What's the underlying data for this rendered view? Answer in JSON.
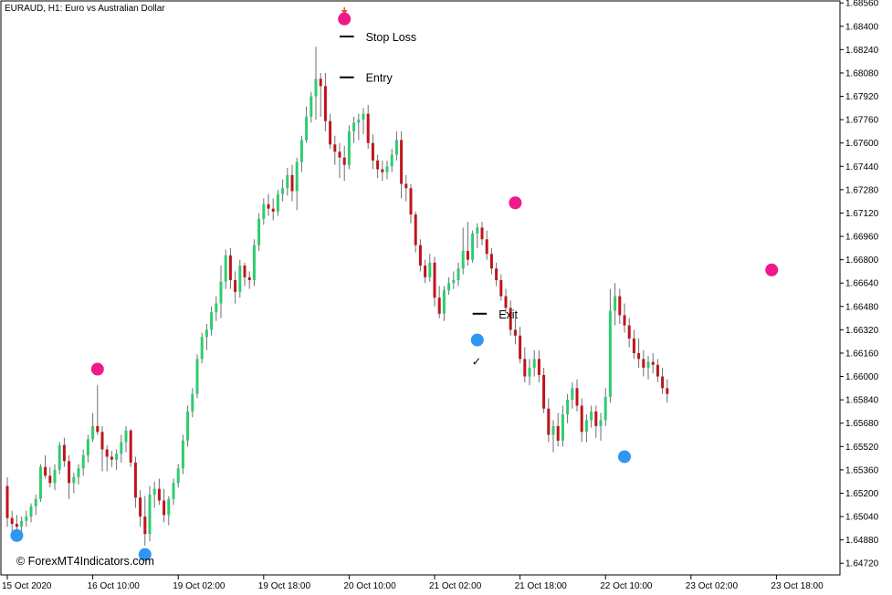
{
  "chart_data": {
    "type": "candlestick",
    "title": "EURAUD, H1:  Euro vs Australian Dollar",
    "watermark": "© ForexMT4Indicators.com",
    "ylim": [
      1.6464,
      1.6858
    ],
    "y_ticks": [
      "1.68560",
      "1.68400",
      "1.68240",
      "1.68080",
      "1.67920",
      "1.67760",
      "1.67600",
      "1.67440",
      "1.67280",
      "1.67120",
      "1.66960",
      "1.66800",
      "1.66640",
      "1.66480",
      "1.66320",
      "1.66160",
      "1.66000",
      "1.65840",
      "1.65680",
      "1.65520",
      "1.65360",
      "1.65200",
      "1.65040",
      "1.64880",
      "1.64720"
    ],
    "x_ticks": [
      {
        "label": "15 Oct 2020",
        "index": 0
      },
      {
        "label": "16 Oct 10:00",
        "index": 18
      },
      {
        "label": "19 Oct 02:00",
        "index": 36
      },
      {
        "label": "19 Oct 18:00",
        "index": 54
      },
      {
        "label": "20 Oct 10:00",
        "index": 72
      },
      {
        "label": "21 Oct 02:00",
        "index": 90
      },
      {
        "label": "21 Oct 18:00",
        "index": 108
      },
      {
        "label": "22 Oct 10:00",
        "index": 126
      },
      {
        "label": "23 Oct 02:00",
        "index": 144
      },
      {
        "label": "23 Oct 18:00",
        "index": 162
      }
    ],
    "colors": {
      "bull": "#2ecc71",
      "bear": "#c0141c",
      "wick": "#6e6e6e",
      "sell_dot": "#f0198c",
      "buy_dot": "#2f96f3",
      "arrow": "#e8542d",
      "line": "#000000"
    },
    "candles": [
      [
        1.6525,
        1.6531,
        1.6497,
        1.6503
      ],
      [
        1.6503,
        1.6508,
        1.6494,
        1.6499
      ],
      [
        1.6499,
        1.6505,
        1.6492,
        1.6497
      ],
      [
        1.6497,
        1.6504,
        1.6491,
        1.6501
      ],
      [
        1.6501,
        1.6508,
        1.6497,
        1.6504
      ],
      [
        1.6504,
        1.6513,
        1.65,
        1.6511
      ],
      [
        1.6511,
        1.6519,
        1.6505,
        1.6516
      ],
      [
        1.6516,
        1.654,
        1.6514,
        1.6538
      ],
      [
        1.6538,
        1.6546,
        1.653,
        1.6532
      ],
      [
        1.6532,
        1.6538,
        1.6524,
        1.6527
      ],
      [
        1.6527,
        1.654,
        1.6522,
        1.6536
      ],
      [
        1.6536,
        1.6555,
        1.6533,
        1.6553
      ],
      [
        1.6553,
        1.6558,
        1.6538,
        1.6542
      ],
      [
        1.6542,
        1.6546,
        1.6516,
        1.6527
      ],
      [
        1.6527,
        1.6534,
        1.652,
        1.6531
      ],
      [
        1.6531,
        1.654,
        1.6526,
        1.6537
      ],
      [
        1.6537,
        1.655,
        1.6532,
        1.6546
      ],
      [
        1.6546,
        1.656,
        1.6541,
        1.6557
      ],
      [
        1.6557,
        1.6575,
        1.6555,
        1.6566
      ],
      [
        1.6566,
        1.6594,
        1.656,
        1.6562
      ],
      [
        1.6562,
        1.6566,
        1.6535,
        1.655
      ],
      [
        1.655,
        1.6553,
        1.6535,
        1.6545
      ],
      [
        1.6545,
        1.6549,
        1.6538,
        1.6543
      ],
      [
        1.6543,
        1.655,
        1.6536,
        1.6547
      ],
      [
        1.6547,
        1.656,
        1.6541,
        1.6555
      ],
      [
        1.6555,
        1.6566,
        1.6548,
        1.6563
      ],
      [
        1.6563,
        1.6564,
        1.6538,
        1.6541
      ],
      [
        1.6541,
        1.6545,
        1.651,
        1.6517
      ],
      [
        1.6517,
        1.6522,
        1.6497,
        1.6504
      ],
      [
        1.6504,
        1.6518,
        1.6484,
        1.6492
      ],
      [
        1.6492,
        1.6525,
        1.6487,
        1.6519
      ],
      [
        1.6519,
        1.6528,
        1.651,
        1.6523
      ],
      [
        1.6523,
        1.653,
        1.6512,
        1.6515
      ],
      [
        1.6515,
        1.6523,
        1.65,
        1.6505
      ],
      [
        1.6505,
        1.6518,
        1.6498,
        1.6516
      ],
      [
        1.6516,
        1.653,
        1.6512,
        1.6527
      ],
      [
        1.6527,
        1.654,
        1.6524,
        1.6537
      ],
      [
        1.6537,
        1.656,
        1.6533,
        1.6556
      ],
      [
        1.6556,
        1.658,
        1.6552,
        1.6576
      ],
      [
        1.6576,
        1.6592,
        1.6572,
        1.6588
      ],
      [
        1.6588,
        1.6615,
        1.6585,
        1.6612
      ],
      [
        1.6612,
        1.663,
        1.6609,
        1.6627
      ],
      [
        1.6627,
        1.6636,
        1.6618,
        1.6632
      ],
      [
        1.6632,
        1.6648,
        1.6628,
        1.6644
      ],
      [
        1.6644,
        1.6655,
        1.6638,
        1.665
      ],
      [
        1.665,
        1.6676,
        1.664,
        1.6665
      ],
      [
        1.6665,
        1.6687,
        1.666,
        1.6683
      ],
      [
        1.6683,
        1.6688,
        1.666,
        1.6666
      ],
      [
        1.6666,
        1.6672,
        1.665,
        1.6658
      ],
      [
        1.6658,
        1.668,
        1.6654,
        1.6676
      ],
      [
        1.6676,
        1.6678,
        1.6662,
        1.6668
      ],
      [
        1.6668,
        1.6672,
        1.666,
        1.6666
      ],
      [
        1.6666,
        1.6694,
        1.6662,
        1.669
      ],
      [
        1.669,
        1.6712,
        1.6686,
        1.6708
      ],
      [
        1.6708,
        1.6722,
        1.6704,
        1.6718
      ],
      [
        1.6718,
        1.6725,
        1.671,
        1.6715
      ],
      [
        1.6715,
        1.6722,
        1.6707,
        1.6713
      ],
      [
        1.6713,
        1.6728,
        1.671,
        1.6725
      ],
      [
        1.6725,
        1.6735,
        1.672,
        1.6729
      ],
      [
        1.6729,
        1.6743,
        1.6724,
        1.6738
      ],
      [
        1.6738,
        1.6745,
        1.672,
        1.6727
      ],
      [
        1.6727,
        1.675,
        1.6714,
        1.6747
      ],
      [
        1.6747,
        1.6765,
        1.674,
        1.6762
      ],
      [
        1.6762,
        1.6785,
        1.676,
        1.6778
      ],
      [
        1.6778,
        1.6795,
        1.6774,
        1.6792
      ],
      [
        1.6792,
        1.6826,
        1.6776,
        1.6804
      ],
      [
        1.6804,
        1.6808,
        1.6778,
        1.6799
      ],
      [
        1.6799,
        1.6808,
        1.6768,
        1.6775
      ],
      [
        1.6775,
        1.678,
        1.6756,
        1.6759
      ],
      [
        1.6759,
        1.6765,
        1.6745,
        1.6754
      ],
      [
        1.6754,
        1.676,
        1.6736,
        1.675
      ],
      [
        1.675,
        1.6758,
        1.6734,
        1.6745
      ],
      [
        1.6745,
        1.6772,
        1.6742,
        1.6768
      ],
      [
        1.6768,
        1.6778,
        1.676,
        1.6774
      ],
      [
        1.6774,
        1.678,
        1.6762,
        1.6776
      ],
      [
        1.6776,
        1.6784,
        1.6766,
        1.678
      ],
      [
        1.678,
        1.6786,
        1.6756,
        1.676
      ],
      [
        1.676,
        1.6766,
        1.6742,
        1.6748
      ],
      [
        1.6748,
        1.6752,
        1.6736,
        1.6742
      ],
      [
        1.6742,
        1.6748,
        1.6734,
        1.674
      ],
      [
        1.674,
        1.6748,
        1.6735,
        1.6744
      ],
      [
        1.6744,
        1.6756,
        1.674,
        1.6752
      ],
      [
        1.6752,
        1.6768,
        1.6748,
        1.6762
      ],
      [
        1.6762,
        1.6768,
        1.6722,
        1.6732
      ],
      [
        1.6732,
        1.6738,
        1.672,
        1.6729
      ],
      [
        1.6729,
        1.6732,
        1.6705,
        1.6711
      ],
      [
        1.6711,
        1.6713,
        1.6685,
        1.669
      ],
      [
        1.669,
        1.6694,
        1.6672,
        1.6676
      ],
      [
        1.6676,
        1.668,
        1.6664,
        1.6668
      ],
      [
        1.6668,
        1.6684,
        1.6665,
        1.6678
      ],
      [
        1.6678,
        1.6682,
        1.6648,
        1.6654
      ],
      [
        1.6654,
        1.6662,
        1.664,
        1.6643
      ],
      [
        1.6643,
        1.6662,
        1.6638,
        1.6659
      ],
      [
        1.6659,
        1.6668,
        1.6656,
        1.6664
      ],
      [
        1.6664,
        1.6672,
        1.666,
        1.6666
      ],
      [
        1.6666,
        1.6678,
        1.6662,
        1.6674
      ],
      [
        1.6674,
        1.6702,
        1.667,
        1.6686
      ],
      [
        1.6686,
        1.6706,
        1.6676,
        1.668
      ],
      [
        1.668,
        1.67,
        1.6678,
        1.6698
      ],
      [
        1.6698,
        1.6705,
        1.6688,
        1.6702
      ],
      [
        1.6702,
        1.6706,
        1.669,
        1.6694
      ],
      [
        1.6694,
        1.67,
        1.668,
        1.6684
      ],
      [
        1.6684,
        1.6688,
        1.667,
        1.6674
      ],
      [
        1.6674,
        1.6678,
        1.6662,
        1.6666
      ],
      [
        1.6666,
        1.667,
        1.6652,
        1.6655
      ],
      [
        1.6655,
        1.666,
        1.6643,
        1.6647
      ],
      [
        1.6647,
        1.6652,
        1.6628,
        1.6632
      ],
      [
        1.6632,
        1.664,
        1.6622,
        1.6628
      ],
      [
        1.6628,
        1.6634,
        1.6609,
        1.6612
      ],
      [
        1.6612,
        1.662,
        1.6596,
        1.66
      ],
      [
        1.66,
        1.6612,
        1.6594,
        1.6606
      ],
      [
        1.6606,
        1.6618,
        1.66,
        1.6612
      ],
      [
        1.6612,
        1.6618,
        1.6596,
        1.6601
      ],
      [
        1.6601,
        1.6606,
        1.6575,
        1.6578
      ],
      [
        1.6578,
        1.6585,
        1.6555,
        1.656
      ],
      [
        1.656,
        1.657,
        1.6548,
        1.6566
      ],
      [
        1.6566,
        1.6575,
        1.6552,
        1.6556
      ],
      [
        1.6556,
        1.658,
        1.6552,
        1.6574
      ],
      [
        1.6574,
        1.6588,
        1.6568,
        1.6584
      ],
      [
        1.6584,
        1.6596,
        1.6578,
        1.6592
      ],
      [
        1.6592,
        1.6598,
        1.6576,
        1.658
      ],
      [
        1.658,
        1.6585,
        1.6555,
        1.6562
      ],
      [
        1.6562,
        1.6574,
        1.6555,
        1.657
      ],
      [
        1.657,
        1.658,
        1.6565,
        1.6576
      ],
      [
        1.6576,
        1.658,
        1.6558,
        1.6566
      ],
      [
        1.6566,
        1.6575,
        1.6556,
        1.657
      ],
      [
        1.657,
        1.6592,
        1.6566,
        1.6586
      ],
      [
        1.6586,
        1.666,
        1.6582,
        1.6645
      ],
      [
        1.6645,
        1.6664,
        1.6635,
        1.6655
      ],
      [
        1.6655,
        1.666,
        1.6636,
        1.6642
      ],
      [
        1.6642,
        1.665,
        1.663,
        1.6635
      ],
      [
        1.6635,
        1.664,
        1.662,
        1.6626
      ],
      [
        1.6626,
        1.6632,
        1.6612,
        1.6616
      ],
      [
        1.6616,
        1.6626,
        1.6606,
        1.6612
      ],
      [
        1.6612,
        1.6618,
        1.66,
        1.6606
      ],
      [
        1.6606,
        1.6614,
        1.6598,
        1.661
      ],
      [
        1.661,
        1.6616,
        1.6602,
        1.6608
      ],
      [
        1.6608,
        1.6612,
        1.6596,
        1.66
      ],
      [
        1.66,
        1.6606,
        1.6588,
        1.6592
      ],
      [
        1.6592,
        1.6598,
        1.6582,
        1.6588
      ]
    ],
    "annotations": {
      "stop_loss": {
        "label": "Stop Loss",
        "price": 1.6833,
        "from_index": 70,
        "to_index": 73
      },
      "entry": {
        "label": "Entry",
        "price": 1.6805,
        "from_index": 70,
        "to_index": 73
      },
      "exit": {
        "label": "Exit",
        "price": 1.6643,
        "from_index": 98,
        "to_index": 101
      },
      "exit_mark": "✓",
      "sell_arrow_index": 71,
      "sell_signals": [
        {
          "index": 71,
          "price": 1.6845
        },
        {
          "index": 107,
          "price": 1.6719
        },
        {
          "index": 161,
          "price": 1.6673
        },
        {
          "index": 19,
          "price": 1.6605
        }
      ],
      "buy_signals": [
        {
          "index": 2,
          "price": 1.6491
        },
        {
          "index": 29,
          "price": 1.6478
        },
        {
          "index": 99,
          "price": 1.6625
        },
        {
          "index": 130,
          "price": 1.6545
        }
      ]
    }
  }
}
